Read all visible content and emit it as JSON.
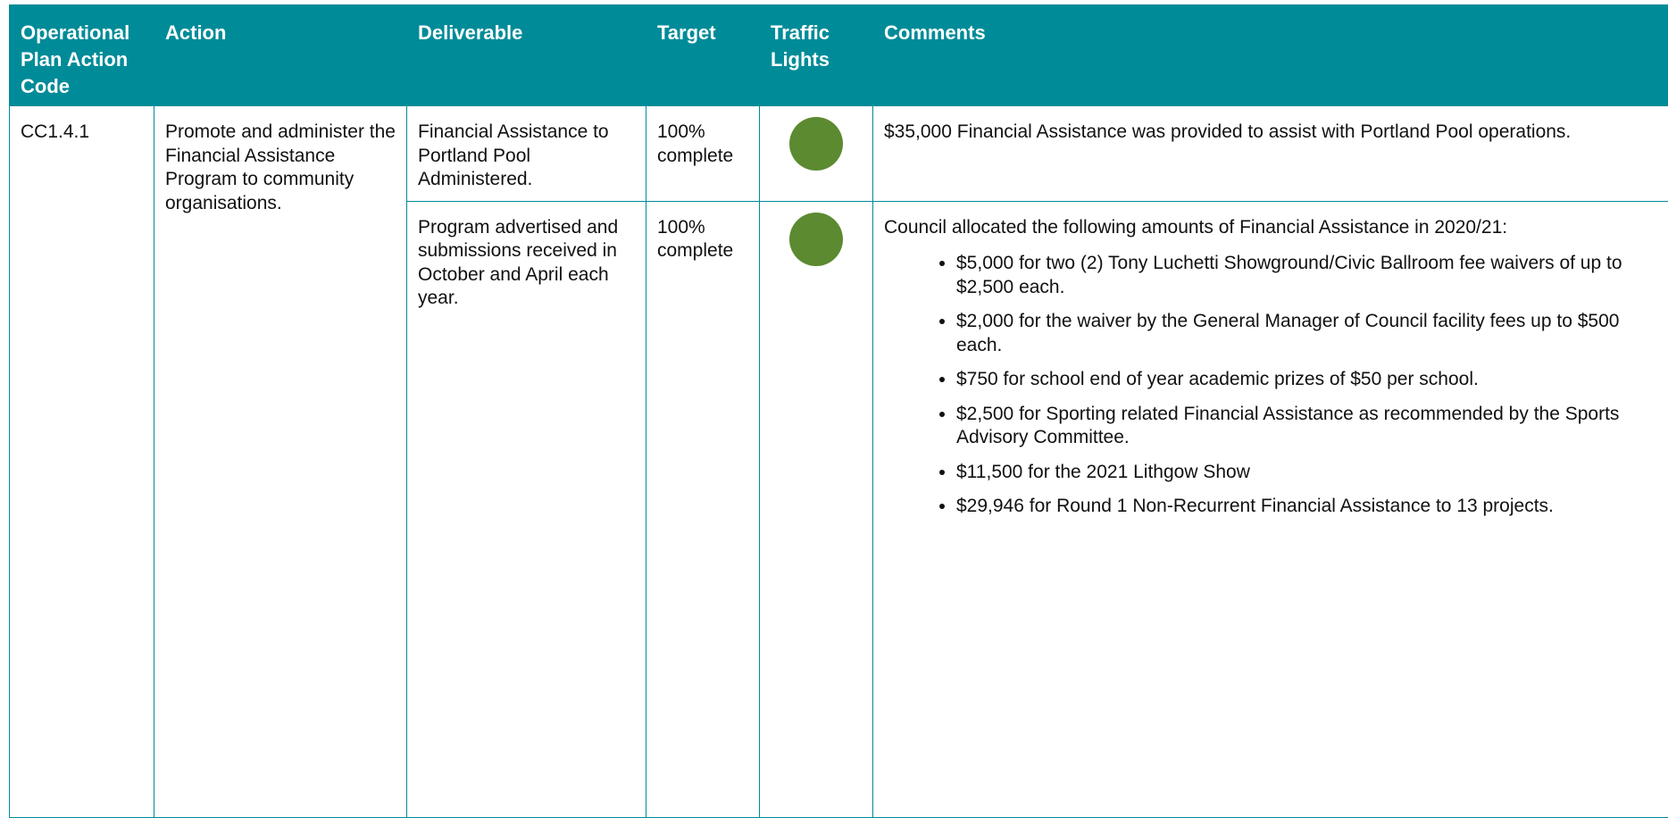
{
  "table": {
    "header": [
      "Operational Plan Action Code",
      "Action",
      "Deliverable",
      "Target",
      "Traffic Lights",
      "Comments"
    ],
    "code": "CC1.4.1",
    "action": "Promote and administer the Financial Assistance Program to community organisations.",
    "rows": [
      {
        "deliverable": "Financial Assistance to Portland Pool Administered.",
        "target": "100% complete",
        "comments": "$35,000 Financial Assistance was provided to assist with Portland Pool operations.",
        "bullets": []
      },
      {
        "deliverable": "Program advertised and submissions received in October and April each year.",
        "target": "100% complete",
        "comments": "Council allocated the following amounts of Financial Assistance in 2020/21:",
        "bullets": [
          "$5,000 for two (2) Tony Luchetti Showground/Civic Ballroom fee waivers of up to $2,500 each.",
          "$2,000 for the waiver by the General Manager of Council facility fees up to $500 each.",
          "$750 for school end of year academic prizes of $50 per school.",
          "$2,500 for Sporting related Financial Assistance as recommended by the Sports Advisory Committee.",
          "$11,500 for the 2021 Lithgow Show",
          "$29,946 for Round 1 Non-Recurrent Financial Assistance to 13 projects."
        ]
      }
    ]
  }
}
